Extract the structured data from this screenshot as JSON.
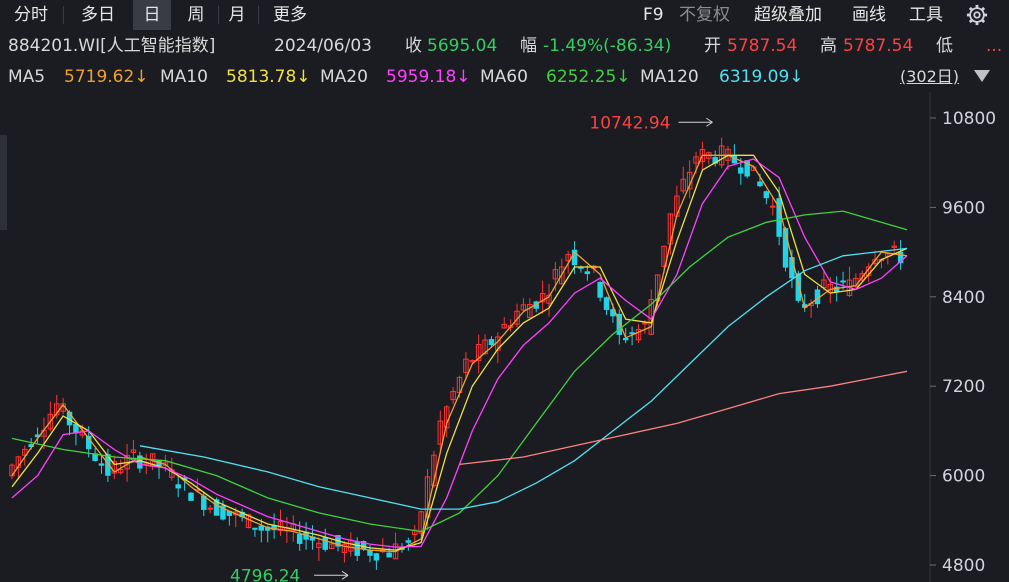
{
  "toolbar": {
    "tabs": [
      {
        "label": "分时"
      },
      {
        "label": "多日"
      },
      {
        "label": "日"
      },
      {
        "label": "周"
      },
      {
        "label": "月"
      },
      {
        "label": "更多"
      }
    ],
    "active_tab": "日",
    "right": {
      "f9": "F9",
      "no_adjust": "不复权",
      "overlay": "超级叠加",
      "draw": "画线",
      "tools": "工具",
      "settings_icon": "gear-icon"
    }
  },
  "quote": {
    "code_name": "884201.WI[人工智能指数]",
    "date": "2024/06/03",
    "close_label": "收",
    "close_value": "5695.04",
    "change_label": "幅",
    "change_value": "-1.49%(-86.34)",
    "open_label": "开",
    "open_value": "5787.54",
    "high_label": "高",
    "high_value": "5787.54",
    "low_label": "低",
    "more": "..."
  },
  "ma_legend": [
    {
      "label": "MA5",
      "value": "5719.62↓",
      "color": "#f0a030"
    },
    {
      "label": "MA10",
      "value": "5813.78↓",
      "color": "#f0e040"
    },
    {
      "label": "MA20",
      "value": "5959.18↓",
      "color": "#ff40ff"
    },
    {
      "label": "MA60",
      "value": "6252.25↓",
      "color": "#40d040"
    },
    {
      "label": "MA120",
      "value": "6319.09↓",
      "color": "#50e0f0"
    }
  ],
  "period_days": "(302日)",
  "period_menu_icon": "triangle-down-icon",
  "chart_data": {
    "type": "candlestick",
    "y_ticks": [
      4800,
      6000,
      7200,
      8400,
      9600,
      10800
    ],
    "ylim": [
      4650,
      11050
    ],
    "annotations": {
      "max": {
        "value": "10742.94",
        "label": "10742.94"
      },
      "min": {
        "value": "4796.24",
        "label": "4796.24"
      }
    },
    "colors": {
      "up": "#ff3333",
      "down": "#22d3e6",
      "ma5": "#f0a030",
      "ma10": "#f0e040",
      "ma20": "#ff40ff",
      "ma60": "#40d040",
      "ma120": "#50e0f0",
      "ma250": "#ff8080"
    },
    "ma_series": [
      {
        "name": "MA5",
        "points": [
          [
            0,
            6000
          ],
          [
            4,
            6500
          ],
          [
            8,
            6950
          ],
          [
            12,
            6500
          ],
          [
            16,
            6050
          ],
          [
            20,
            6250
          ],
          [
            24,
            6150
          ],
          [
            28,
            5850
          ],
          [
            32,
            5600
          ],
          [
            36,
            5450
          ],
          [
            40,
            5300
          ],
          [
            44,
            5250
          ],
          [
            48,
            5150
          ],
          [
            52,
            5050
          ],
          [
            56,
            5000
          ],
          [
            60,
            4980
          ],
          [
            64,
            5150
          ],
          [
            68,
            6700
          ],
          [
            72,
            7500
          ],
          [
            76,
            7800
          ],
          [
            80,
            8200
          ],
          [
            84,
            8400
          ],
          [
            88,
            9000
          ],
          [
            92,
            8700
          ],
          [
            96,
            7850
          ],
          [
            100,
            8000
          ],
          [
            104,
            9500
          ],
          [
            108,
            10300
          ],
          [
            112,
            10300
          ],
          [
            116,
            10150
          ],
          [
            120,
            9600
          ],
          [
            124,
            8250
          ],
          [
            128,
            8500
          ],
          [
            132,
            8550
          ],
          [
            136,
            9000
          ],
          [
            140,
            8950
          ]
        ]
      },
      {
        "name": "MA10",
        "points": [
          [
            0,
            5850
          ],
          [
            4,
            6300
          ],
          [
            8,
            6800
          ],
          [
            12,
            6600
          ],
          [
            16,
            6150
          ],
          [
            20,
            6200
          ],
          [
            24,
            6100
          ],
          [
            28,
            5900
          ],
          [
            32,
            5650
          ],
          [
            36,
            5500
          ],
          [
            40,
            5350
          ],
          [
            44,
            5280
          ],
          [
            48,
            5200
          ],
          [
            52,
            5100
          ],
          [
            56,
            5030
          ],
          [
            60,
            5000
          ],
          [
            64,
            5100
          ],
          [
            68,
            6300
          ],
          [
            72,
            7200
          ],
          [
            76,
            7700
          ],
          [
            80,
            8050
          ],
          [
            84,
            8250
          ],
          [
            88,
            8800
          ],
          [
            92,
            8800
          ],
          [
            96,
            8100
          ],
          [
            100,
            8050
          ],
          [
            104,
            9150
          ],
          [
            108,
            10100
          ],
          [
            112,
            10300
          ],
          [
            116,
            10300
          ],
          [
            120,
            9800
          ],
          [
            124,
            8700
          ],
          [
            128,
            8450
          ],
          [
            132,
            8500
          ],
          [
            136,
            8900
          ],
          [
            140,
            9050
          ]
        ]
      },
      {
        "name": "MA20",
        "points": [
          [
            0,
            5700
          ],
          [
            4,
            6000
          ],
          [
            8,
            6550
          ],
          [
            12,
            6600
          ],
          [
            16,
            6350
          ],
          [
            20,
            6150
          ],
          [
            24,
            6100
          ],
          [
            28,
            5950
          ],
          [
            32,
            5750
          ],
          [
            36,
            5600
          ],
          [
            40,
            5450
          ],
          [
            44,
            5350
          ],
          [
            48,
            5250
          ],
          [
            52,
            5150
          ],
          [
            56,
            5080
          ],
          [
            60,
            5040
          ],
          [
            64,
            5050
          ],
          [
            68,
            5700
          ],
          [
            72,
            6600
          ],
          [
            76,
            7300
          ],
          [
            80,
            7750
          ],
          [
            84,
            8050
          ],
          [
            88,
            8450
          ],
          [
            92,
            8650
          ],
          [
            96,
            8350
          ],
          [
            100,
            8100
          ],
          [
            104,
            8700
          ],
          [
            108,
            9650
          ],
          [
            112,
            10150
          ],
          [
            116,
            10250
          ],
          [
            120,
            10000
          ],
          [
            124,
            9200
          ],
          [
            128,
            8600
          ],
          [
            132,
            8500
          ],
          [
            136,
            8650
          ],
          [
            140,
            8950
          ]
        ]
      },
      {
        "name": "MA60",
        "points": [
          [
            0,
            6500
          ],
          [
            8,
            6350
          ],
          [
            16,
            6250
          ],
          [
            24,
            6200
          ],
          [
            32,
            6000
          ],
          [
            40,
            5700
          ],
          [
            48,
            5500
          ],
          [
            56,
            5350
          ],
          [
            64,
            5250
          ],
          [
            70,
            5500
          ],
          [
            76,
            6000
          ],
          [
            82,
            6700
          ],
          [
            88,
            7400
          ],
          [
            94,
            7900
          ],
          [
            100,
            8300
          ],
          [
            106,
            8800
          ],
          [
            112,
            9200
          ],
          [
            118,
            9400
          ],
          [
            124,
            9500
          ],
          [
            130,
            9550
          ],
          [
            140,
            9300
          ]
        ]
      },
      {
        "name": "MA120",
        "points": [
          [
            20,
            6400
          ],
          [
            30,
            6250
          ],
          [
            40,
            6050
          ],
          [
            48,
            5850
          ],
          [
            56,
            5700
          ],
          [
            64,
            5550
          ],
          [
            70,
            5550
          ],
          [
            76,
            5650
          ],
          [
            82,
            5900
          ],
          [
            88,
            6200
          ],
          [
            94,
            6600
          ],
          [
            100,
            7000
          ],
          [
            106,
            7500
          ],
          [
            112,
            8000
          ],
          [
            118,
            8400
          ],
          [
            124,
            8750
          ],
          [
            130,
            8950
          ],
          [
            140,
            9050
          ]
        ]
      },
      {
        "name": "MA250",
        "points": [
          [
            70,
            6150
          ],
          [
            80,
            6250
          ],
          [
            88,
            6400
          ],
          [
            96,
            6550
          ],
          [
            104,
            6700
          ],
          [
            112,
            6900
          ],
          [
            120,
            7100
          ],
          [
            128,
            7200
          ],
          [
            140,
            7400
          ]
        ]
      }
    ]
  }
}
